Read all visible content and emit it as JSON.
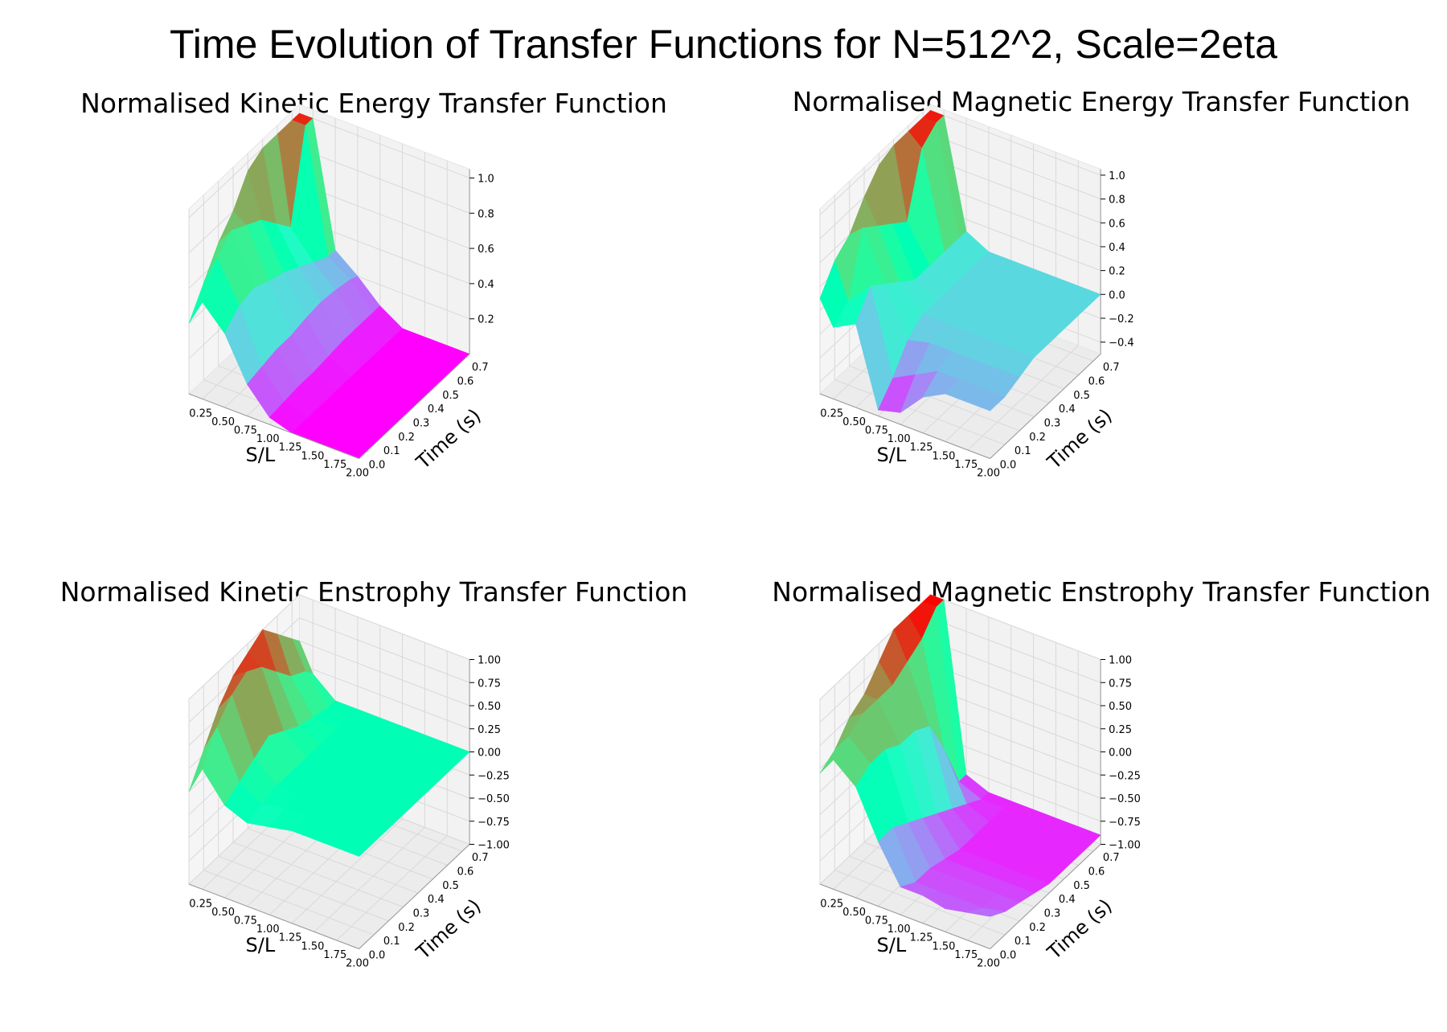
{
  "figure": {
    "suptitle": "Time Evolution of Transfer Functions for N=512^2, Scale=2eta"
  },
  "chart_data": [
    {
      "type": "surface",
      "title": "Normalised Kinetic Energy Transfer Function",
      "xlabel": "S/L",
      "ylabel": "Time (s)",
      "zlabel": "",
      "x_ticks": [
        "0.25",
        "0.50",
        "0.75",
        "1.00",
        "1.25",
        "1.50",
        "1.75",
        "2.00"
      ],
      "y_ticks": [
        "0.0",
        "0.1",
        "0.2",
        "0.3",
        "0.4",
        "0.5",
        "0.6",
        "0.7"
      ],
      "z_ticks": [
        "0.2",
        "0.4",
        "0.6",
        "0.8",
        "1.0"
      ],
      "xlim": [
        0.1,
        2.0
      ],
      "ylim": [
        0.0,
        0.75
      ],
      "zlim": [
        0.0,
        1.05
      ],
      "colormap": "rainbow",
      "x": [
        0.1,
        0.25,
        0.5,
        0.75,
        1.0,
        1.25,
        1.5,
        1.75,
        2.0
      ],
      "y": [
        0.0,
        0.1,
        0.2,
        0.3,
        0.4,
        0.5,
        0.6,
        0.7,
        0.75
      ],
      "z": [
        [
          0.4,
          0.55,
          0.42,
          0.18,
          0.04,
          0.0,
          0.0,
          0.0,
          0.0
        ],
        [
          0.55,
          0.72,
          0.5,
          0.2,
          0.05,
          0.0,
          0.0,
          0.0,
          0.0
        ],
        [
          0.7,
          0.8,
          0.52,
          0.22,
          0.06,
          0.0,
          0.0,
          0.0,
          0.0
        ],
        [
          0.8,
          0.75,
          0.48,
          0.22,
          0.06,
          0.0,
          0.0,
          0.0,
          0.0
        ],
        [
          0.95,
          0.7,
          0.45,
          0.24,
          0.07,
          0.0,
          0.0,
          0.0,
          0.0
        ],
        [
          1.0,
          0.6,
          0.4,
          0.25,
          0.08,
          0.0,
          0.0,
          0.0,
          0.0
        ],
        [
          1.0,
          0.5,
          0.35,
          0.24,
          0.08,
          0.0,
          0.0,
          0.0,
          0.0
        ],
        [
          1.0,
          1.0,
          0.3,
          0.22,
          0.08,
          0.0,
          0.0,
          0.0,
          0.0
        ],
        [
          1.0,
          1.0,
          0.3,
          0.2,
          0.08,
          0.0,
          0.0,
          0.0,
          0.0
        ]
      ]
    },
    {
      "type": "surface",
      "title": "Normalised Magnetic Energy Transfer Function",
      "xlabel": "S/L",
      "ylabel": "Time (s)",
      "zlabel": "",
      "x_ticks": [
        "0.25",
        "0.50",
        "0.75",
        "1.00",
        "1.25",
        "1.50",
        "1.75",
        "2.00"
      ],
      "y_ticks": [
        "0.0",
        "0.1",
        "0.2",
        "0.3",
        "0.4",
        "0.5",
        "0.6",
        "0.7"
      ],
      "z_ticks": [
        "−0.4",
        "−0.2",
        "0.0",
        "0.2",
        "0.4",
        "0.6",
        "0.8",
        "1.0"
      ],
      "xlim": [
        0.1,
        2.0
      ],
      "ylim": [
        0.0,
        0.75
      ],
      "zlim": [
        -0.5,
        1.05
      ],
      "colormap": "rainbow",
      "x": [
        0.1,
        0.25,
        0.5,
        0.75,
        1.0,
        1.25,
        1.5,
        1.75,
        2.0
      ],
      "y": [
        0.0,
        0.1,
        0.2,
        0.3,
        0.4,
        0.5,
        0.6,
        0.7,
        0.75
      ],
      "z": [
        [
          0.3,
          0.1,
          0.2,
          -0.45,
          -0.4,
          -0.2,
          -0.1,
          -0.1,
          -0.1
        ],
        [
          0.5,
          0.2,
          0.4,
          -0.3,
          -0.2,
          -0.1,
          -0.1,
          -0.1,
          -0.1
        ],
        [
          0.6,
          0.7,
          0.3,
          -0.1,
          -0.05,
          -0.05,
          -0.05,
          -0.05,
          -0.05
        ],
        [
          0.8,
          0.6,
          0.2,
          0.0,
          0.0,
          0.0,
          0.0,
          0.0,
          0.0
        ],
        [
          0.95,
          0.5,
          0.1,
          0.0,
          0.0,
          0.0,
          0.0,
          0.0,
          0.0
        ],
        [
          1.0,
          0.4,
          0.1,
          0.0,
          0.0,
          0.0,
          0.0,
          0.0,
          0.0
        ],
        [
          1.0,
          0.9,
          0.1,
          0.0,
          0.0,
          0.0,
          0.0,
          0.0,
          0.0
        ],
        [
          1.0,
          1.0,
          0.1,
          0.0,
          0.0,
          0.0,
          0.0,
          0.0,
          0.0
        ],
        [
          1.0,
          1.0,
          0.1,
          0.0,
          0.0,
          0.0,
          0.0,
          0.0,
          0.0
        ]
      ]
    },
    {
      "type": "surface",
      "title": "Normalised Kinetic Enstrophy Transfer Function",
      "xlabel": "S/L",
      "ylabel": "Time (s)",
      "zlabel": "",
      "x_ticks": [
        "0.25",
        "0.50",
        "0.75",
        "1.00",
        "1.25",
        "1.50",
        "1.75",
        "2.00"
      ],
      "y_ticks": [
        "0.0",
        "0.1",
        "0.2",
        "0.3",
        "0.4",
        "0.5",
        "0.6",
        "0.7"
      ],
      "z_ticks": [
        "−1.00",
        "−0.75",
        "−0.50",
        "−0.25",
        "0.00",
        "0.25",
        "0.50",
        "0.75",
        "1.00"
      ],
      "xlim": [
        0.1,
        2.0
      ],
      "ylim": [
        0.0,
        0.75
      ],
      "zlim": [
        -1.0,
        1.0
      ],
      "colormap": "rainbow",
      "x": [
        0.1,
        0.25,
        0.5,
        0.75,
        1.0,
        1.25,
        1.5,
        1.75,
        2.0
      ],
      "y": [
        0.0,
        0.1,
        0.2,
        0.3,
        0.4,
        0.5,
        0.6,
        0.7,
        0.75
      ],
      "z": [
        [
          0.0,
          0.3,
          0.0,
          -0.1,
          -0.05,
          0.0,
          0.0,
          0.0,
          0.0
        ],
        [
          0.3,
          0.6,
          0.1,
          -0.05,
          0.0,
          0.0,
          0.0,
          0.0,
          0.0
        ],
        [
          0.6,
          0.8,
          0.2,
          0.0,
          0.0,
          0.0,
          0.0,
          0.0,
          0.0
        ],
        [
          0.8,
          0.9,
          0.3,
          0.0,
          0.0,
          0.0,
          0.0,
          0.0,
          0.0
        ],
        [
          0.9,
          0.8,
          0.2,
          0.0,
          0.0,
          0.0,
          0.0,
          0.0,
          0.0
        ],
        [
          1.0,
          0.6,
          0.1,
          0.0,
          0.0,
          0.0,
          0.0,
          0.0,
          0.0
        ],
        [
          0.8,
          0.4,
          0.05,
          0.0,
          0.0,
          0.0,
          0.0,
          0.0,
          0.0
        ],
        [
          0.6,
          0.3,
          0.0,
          0.0,
          0.0,
          0.0,
          0.0,
          0.0,
          0.0
        ],
        [
          0.5,
          0.2,
          0.0,
          0.0,
          0.0,
          0.0,
          0.0,
          0.0,
          0.0
        ]
      ]
    },
    {
      "type": "surface",
      "title": "Normalised Magnetic Enstrophy Transfer Function",
      "xlabel": "S/L",
      "ylabel": "Time (s)",
      "zlabel": "",
      "x_ticks": [
        "0.25",
        "0.50",
        "0.75",
        "1.00",
        "1.25",
        "1.50",
        "1.75",
        "2.00"
      ],
      "y_ticks": [
        "0.0",
        "0.1",
        "0.2",
        "0.3",
        "0.4",
        "0.5",
        "0.6",
        "0.7"
      ],
      "z_ticks": [
        "−1.00",
        "−0.75",
        "−0.50",
        "−0.25",
        "0.00",
        "0.25",
        "0.50",
        "0.75",
        "1.00"
      ],
      "xlim": [
        0.1,
        2.0
      ],
      "ylim": [
        0.0,
        0.75
      ],
      "zlim": [
        -1.0,
        1.0
      ],
      "colormap": "rainbow",
      "x": [
        0.1,
        0.25,
        0.5,
        0.75,
        1.0,
        1.25,
        1.5,
        1.75,
        2.0
      ],
      "y": [
        0.0,
        0.1,
        0.2,
        0.3,
        0.4,
        0.5,
        0.6,
        0.7,
        0.75
      ],
      "z": [
        [
          0.2,
          0.4,
          0.2,
          -0.3,
          -0.7,
          -0.7,
          -0.75,
          -0.7,
          -0.65
        ],
        [
          0.3,
          0.5,
          0.3,
          -0.3,
          -0.8,
          -0.8,
          -0.8,
          -0.8,
          -0.75
        ],
        [
          0.5,
          0.6,
          0.3,
          -0.4,
          -0.8,
          -0.8,
          -0.8,
          -0.8,
          -0.8
        ],
        [
          0.6,
          0.6,
          0.2,
          -0.5,
          -0.85,
          -0.85,
          -0.85,
          -0.85,
          -0.85
        ],
        [
          0.8,
          0.6,
          0.2,
          -0.6,
          -0.9,
          -0.9,
          -0.9,
          -0.9,
          -0.9
        ],
        [
          1.0,
          0.7,
          0.1,
          -0.7,
          -0.9,
          -0.9,
          -0.9,
          -0.9,
          -0.9
        ],
        [
          1.0,
          0.8,
          -0.3,
          -0.8,
          -0.9,
          -0.9,
          -0.9,
          -0.9,
          -0.9
        ],
        [
          1.0,
          1.0,
          -0.8,
          -0.9,
          -0.9,
          -0.9,
          -0.9,
          -0.9,
          -0.9
        ],
        [
          1.0,
          1.0,
          -0.8,
          -0.9,
          -0.9,
          -0.9,
          -0.9,
          -0.9,
          -0.9
        ]
      ]
    }
  ]
}
